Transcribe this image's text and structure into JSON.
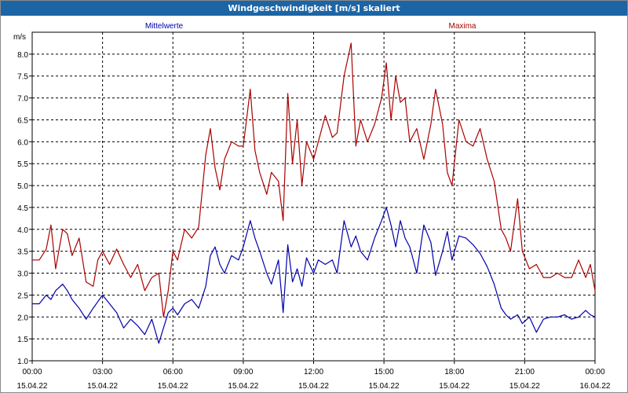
{
  "window": {
    "title": "Windgeschwindigkeit [m/s] skaliert"
  },
  "chart_data": {
    "type": "line",
    "title": "Windgeschwindigkeit [m/s] skaliert",
    "ylabel": "m/s",
    "xlabel": "",
    "ylim": [
      1.0,
      8.5
    ],
    "xlim_hours": [
      0,
      24
    ],
    "grid": true,
    "yticks": [
      "1.0",
      "1.5",
      "2.0",
      "2.5",
      "3.0",
      "3.5",
      "4.0",
      "4.5",
      "5.0",
      "5.5",
      "6.0",
      "6.5",
      "7.0",
      "7.5",
      "8.0"
    ],
    "xticks": [
      {
        "time": "00:00",
        "date": "15.04.22"
      },
      {
        "time": "03:00",
        "date": "15.04.22"
      },
      {
        "time": "06:00",
        "date": "15.04.22"
      },
      {
        "time": "09:00",
        "date": "15.04.22"
      },
      {
        "time": "12:00",
        "date": "15.04.22"
      },
      {
        "time": "15:00",
        "date": "15.04.22"
      },
      {
        "time": "18:00",
        "date": "15.04.22"
      },
      {
        "time": "21:00",
        "date": "15.04.22"
      },
      {
        "time": "00:00",
        "date": "16.04.22"
      }
    ],
    "series": [
      {
        "name": "Mittelwerte",
        "color": "#0000aa",
        "x": [
          0,
          0.3,
          0.6,
          0.8,
          1.0,
          1.3,
          1.5,
          1.7,
          2.0,
          2.3,
          2.6,
          2.8,
          3.0,
          3.3,
          3.6,
          3.9,
          4.2,
          4.5,
          4.8,
          5.1,
          5.4,
          5.6,
          5.8,
          6.0,
          6.2,
          6.5,
          6.8,
          7.1,
          7.4,
          7.6,
          7.8,
          8.0,
          8.2,
          8.5,
          8.8,
          9.0,
          9.3,
          9.5,
          9.7,
          10.0,
          10.2,
          10.5,
          10.7,
          10.9,
          11.1,
          11.3,
          11.5,
          11.7,
          12.0,
          12.2,
          12.5,
          12.8,
          13.0,
          13.3,
          13.6,
          13.8,
          14.0,
          14.3,
          14.6,
          14.9,
          15.1,
          15.3,
          15.5,
          15.7,
          15.9,
          16.1,
          16.4,
          16.7,
          17.0,
          17.2,
          17.5,
          17.7,
          17.9,
          18.2,
          18.5,
          18.8,
          19.1,
          19.4,
          19.7,
          20.0,
          20.2,
          20.4,
          20.7,
          20.9,
          21.2,
          21.5,
          21.8,
          22.1,
          22.4,
          22.7,
          23.0,
          23.3,
          23.6,
          23.8,
          24.0
        ],
        "y": [
          2.3,
          2.3,
          2.5,
          2.4,
          2.6,
          2.75,
          2.6,
          2.4,
          2.2,
          1.95,
          2.2,
          2.35,
          2.5,
          2.3,
          2.1,
          1.75,
          1.95,
          1.8,
          1.6,
          1.95,
          1.4,
          1.75,
          2.1,
          2.2,
          2.05,
          2.3,
          2.4,
          2.2,
          2.7,
          3.4,
          3.6,
          3.2,
          3.0,
          3.4,
          3.3,
          3.6,
          4.2,
          3.8,
          3.5,
          3.0,
          2.75,
          3.3,
          2.1,
          3.65,
          2.8,
          3.1,
          2.7,
          3.35,
          3.0,
          3.3,
          3.2,
          3.3,
          3.0,
          4.2,
          3.6,
          3.85,
          3.5,
          3.3,
          3.8,
          4.2,
          4.5,
          4.1,
          3.6,
          4.2,
          3.8,
          3.6,
          3.0,
          4.1,
          3.7,
          2.95,
          3.5,
          3.95,
          3.3,
          3.85,
          3.8,
          3.65,
          3.45,
          3.15,
          2.75,
          2.2,
          2.05,
          1.95,
          2.05,
          1.85,
          2.0,
          1.65,
          1.95,
          2.0,
          2.0,
          2.05,
          1.95,
          2.0,
          2.15,
          2.05,
          2.0
        ]
      },
      {
        "name": "Maxima",
        "color": "#aa0000",
        "x": [
          0,
          0.3,
          0.6,
          0.8,
          1.0,
          1.3,
          1.5,
          1.7,
          2.0,
          2.3,
          2.6,
          2.8,
          3.0,
          3.3,
          3.6,
          3.9,
          4.2,
          4.5,
          4.8,
          5.1,
          5.4,
          5.6,
          5.8,
          6.0,
          6.2,
          6.5,
          6.8,
          7.1,
          7.4,
          7.6,
          7.8,
          8.0,
          8.2,
          8.5,
          8.8,
          9.0,
          9.3,
          9.5,
          9.7,
          10.0,
          10.2,
          10.5,
          10.7,
          10.9,
          11.1,
          11.3,
          11.5,
          11.7,
          12.0,
          12.2,
          12.5,
          12.8,
          13.0,
          13.3,
          13.6,
          13.8,
          14.0,
          14.3,
          14.6,
          14.9,
          15.1,
          15.3,
          15.5,
          15.7,
          15.9,
          16.1,
          16.4,
          16.7,
          17.0,
          17.2,
          17.5,
          17.7,
          17.9,
          18.2,
          18.5,
          18.8,
          19.1,
          19.4,
          19.7,
          20.0,
          20.2,
          20.4,
          20.7,
          20.9,
          21.2,
          21.5,
          21.8,
          22.1,
          22.4,
          22.7,
          23.0,
          23.3,
          23.6,
          23.8,
          24.0
        ],
        "y": [
          3.3,
          3.3,
          3.55,
          4.1,
          3.1,
          4.0,
          3.9,
          3.4,
          3.8,
          2.8,
          2.7,
          3.3,
          3.5,
          3.2,
          3.55,
          3.2,
          2.9,
          3.2,
          2.6,
          2.9,
          3.0,
          2.0,
          2.6,
          3.5,
          3.3,
          4.0,
          3.8,
          4.05,
          5.7,
          6.3,
          5.4,
          4.9,
          5.6,
          6.0,
          5.9,
          5.9,
          7.2,
          5.8,
          5.3,
          4.8,
          5.3,
          5.1,
          4.2,
          7.1,
          5.5,
          6.5,
          5.0,
          6.0,
          5.6,
          6.0,
          6.6,
          6.1,
          6.2,
          7.5,
          8.25,
          5.9,
          6.5,
          6.0,
          6.4,
          7.0,
          7.8,
          6.5,
          7.5,
          6.9,
          7.0,
          6.0,
          6.3,
          5.6,
          6.4,
          7.2,
          6.4,
          5.3,
          5.0,
          6.5,
          6.0,
          5.9,
          6.3,
          5.6,
          5.1,
          4.0,
          3.8,
          3.5,
          4.7,
          3.5,
          3.1,
          3.2,
          2.9,
          2.9,
          3.0,
          2.9,
          2.9,
          3.3,
          2.9,
          3.2,
          2.6
        ]
      }
    ]
  }
}
